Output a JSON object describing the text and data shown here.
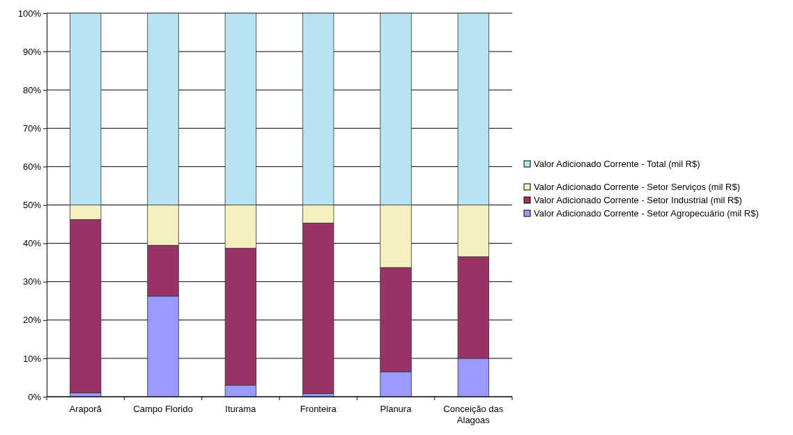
{
  "chart_data": {
    "type": "bar",
    "stacked": true,
    "categories": [
      "Araporã",
      "Campo Florido",
      "Iturama",
      "Fronteira",
      "Planura",
      "Conceição das Alagoas"
    ],
    "series": [
      {
        "name": "Valor Adicionado Corrente - Setor Agropecuário (mil R$)",
        "color": "#9999ff",
        "values": [
          1,
          26.2,
          3,
          0.8,
          6.5,
          10
        ]
      },
      {
        "name": "Valor Adicionado Corrente - Setor Industrial (mil R$)",
        "color": "#993366",
        "values": [
          45.2,
          13.3,
          35.7,
          44.5,
          27.2,
          26.5
        ]
      },
      {
        "name": "Valor Adicionado Corrente - Setor Serviços (mil R$)",
        "color": "#f5f0c0",
        "values": [
          3.8,
          10.5,
          11.3,
          4.7,
          16.3,
          13.5
        ]
      },
      {
        "name": "Valor Adicionado Corrente - Total (mil R$)",
        "color": "#b8e4f2",
        "values": [
          50,
          50,
          50,
          50,
          50,
          50
        ]
      }
    ],
    "ylim": [
      0,
      100
    ],
    "yticks": [
      {
        "value": 0,
        "label": "0%"
      },
      {
        "value": 10,
        "label": "10%"
      },
      {
        "value": 20,
        "label": "20%"
      },
      {
        "value": 30,
        "label": "30%"
      },
      {
        "value": 40,
        "label": "40%"
      },
      {
        "value": 50,
        "label": "50%"
      },
      {
        "value": 60,
        "label": "60%"
      },
      {
        "value": 70,
        "label": "70%"
      },
      {
        "value": 80,
        "label": "80%"
      },
      {
        "value": 90,
        "label": "90%"
      },
      {
        "value": 100,
        "label": "100%"
      }
    ],
    "grid": "y",
    "legend": "right"
  }
}
